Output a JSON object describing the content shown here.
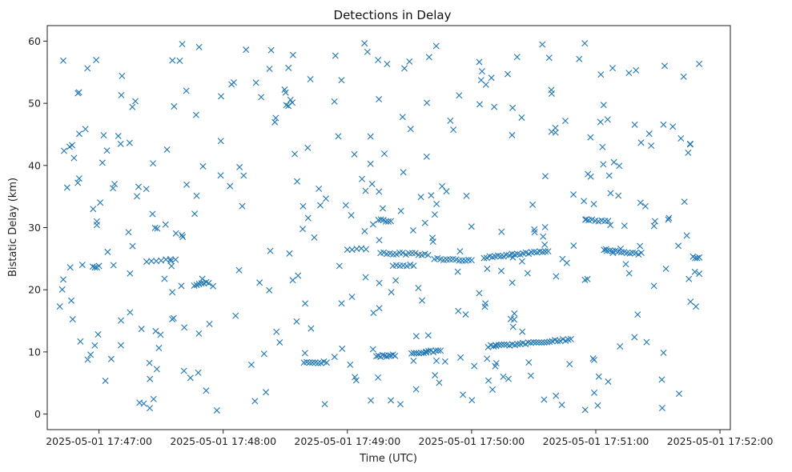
{
  "chart_data": {
    "type": "scatter",
    "title": "Detections in Delay",
    "xlabel": "Time (UTC)",
    "ylabel": "Bistatic Delay (km)",
    "marker": "x",
    "color": "#1f77b4",
    "grid": false,
    "legend": "none",
    "xlim": [
      "2025-05-01 17:46:35",
      "2025-05-01 17:52:05"
    ],
    "ylim": [
      -2.5,
      62.5
    ],
    "xticks": [
      "2025-05-01 17:47:00",
      "2025-05-01 17:48:00",
      "2025-05-01 17:49:00",
      "2025-05-01 17:50:00",
      "2025-05-01 17:51:00",
      "2025-05-01 17:52:00"
    ],
    "yticks": [
      0,
      10,
      20,
      30,
      40,
      50,
      60
    ],
    "x_start": "2025-05-01 17:46:40",
    "x_end": "2025-05-01 17:51:50",
    "tracks": [
      {
        "start": "2025-05-01 17:46:57",
        "end": "2025-05-01 17:47:00",
        "delay_start": 23.7,
        "delay_end": 23.7,
        "count": 4
      },
      {
        "start": "2025-05-01 17:47:23",
        "end": "2025-05-01 17:47:37",
        "delay_start": 24.6,
        "delay_end": 24.8,
        "count": 7
      },
      {
        "start": "2025-05-01 17:47:46",
        "end": "2025-05-01 17:47:53",
        "delay_start": 20.6,
        "delay_end": 21.2,
        "count": 7
      },
      {
        "start": "2025-05-01 17:48:39",
        "end": "2025-05-01 17:48:50",
        "delay_start": 8.3,
        "delay_end": 8.3,
        "count": 9
      },
      {
        "start": "2025-05-01 17:49:00",
        "end": "2025-05-01 17:49:09",
        "delay_start": 26.5,
        "delay_end": 26.5,
        "count": 5
      },
      {
        "start": "2025-05-01 17:49:14",
        "end": "2025-05-01 17:49:23",
        "delay_start": 9.3,
        "delay_end": 9.5,
        "count": 10
      },
      {
        "start": "2025-05-01 17:49:15",
        "end": "2025-05-01 17:49:21",
        "delay_start": 31.2,
        "delay_end": 31.0,
        "count": 6
      },
      {
        "start": "2025-05-01 17:49:16",
        "end": "2025-05-01 17:49:39",
        "delay_start": 25.9,
        "delay_end": 25.7,
        "count": 16
      },
      {
        "start": "2025-05-01 17:49:22",
        "end": "2025-05-01 17:49:32",
        "delay_start": 23.8,
        "delay_end": 23.9,
        "count": 7
      },
      {
        "start": "2025-05-01 17:49:31",
        "end": "2025-05-01 17:49:45",
        "delay_start": 9.8,
        "delay_end": 10.2,
        "count": 13
      },
      {
        "start": "2025-05-01 17:49:42",
        "end": "2025-05-01 17:50:00",
        "delay_start": 25.0,
        "delay_end": 24.7,
        "count": 13
      },
      {
        "start": "2025-05-01 17:50:06",
        "end": "2025-05-01 17:50:37",
        "delay_start": 25.2,
        "delay_end": 26.2,
        "count": 24
      },
      {
        "start": "2025-05-01 17:50:08",
        "end": "2025-05-01 17:50:48",
        "delay_start": 10.9,
        "delay_end": 12.0,
        "count": 32
      },
      {
        "start": "2025-05-01 17:51:04",
        "end": "2025-05-01 17:51:22",
        "delay_start": 26.3,
        "delay_end": 25.8,
        "count": 14
      },
      {
        "start": "2025-05-01 17:50:55",
        "end": "2025-05-01 17:51:06",
        "delay_start": 31.2,
        "delay_end": 31.0,
        "count": 8
      },
      {
        "start": "2025-05-01 17:51:47",
        "end": "2025-05-01 17:51:50",
        "delay_start": 25.3,
        "delay_end": 25.1,
        "count": 4
      }
    ],
    "scattered_count": 380,
    "scattered_range": [
      0.5,
      59.8
    ]
  }
}
